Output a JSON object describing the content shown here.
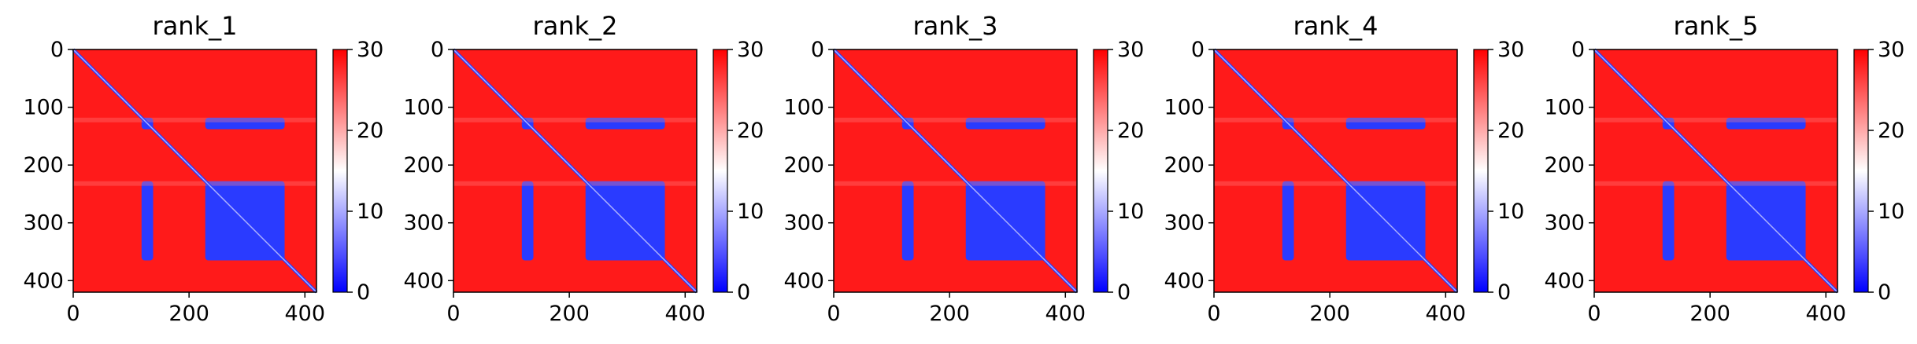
{
  "chart_data": {
    "type": "heatmap",
    "description_kind": "PAE matrix panels",
    "colormap": {
      "low": "#0000ff",
      "mid": "#ffffff",
      "high": "#ff0000"
    },
    "color_range": [
      0,
      30
    ],
    "colorbar_ticks": [
      0,
      10,
      20,
      30
    ],
    "x_ticks": [
      0,
      200,
      400
    ],
    "y_ticks": [
      0,
      100,
      200,
      300,
      400
    ],
    "matrix_size": 420,
    "panels": [
      {
        "title": "rank_1"
      },
      {
        "title": "rank_2"
      },
      {
        "title": "rank_3"
      },
      {
        "title": "rank_4"
      },
      {
        "title": "rank_5"
      }
    ],
    "low_error_blocks": [
      {
        "rows": [
          118,
          138
        ],
        "cols": [
          118,
          138
        ]
      },
      {
        "rows": [
          118,
          138
        ],
        "cols": [
          228,
          365
        ]
      },
      {
        "rows": [
          228,
          365
        ],
        "cols": [
          118,
          138
        ]
      },
      {
        "rows": [
          228,
          365
        ],
        "cols": [
          228,
          365
        ]
      }
    ]
  }
}
